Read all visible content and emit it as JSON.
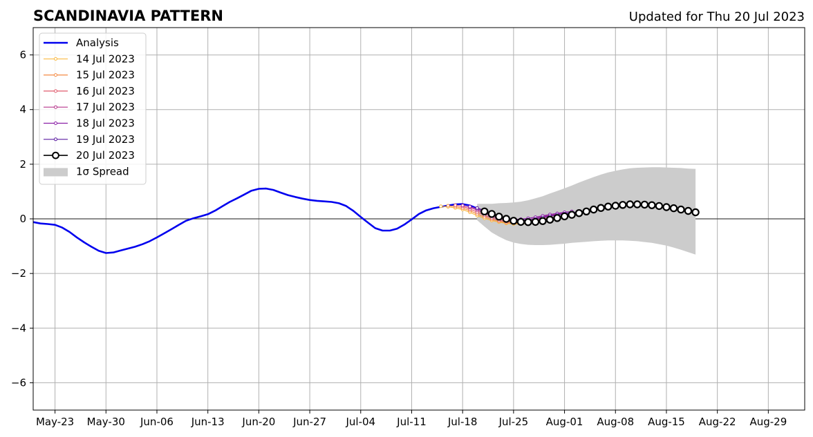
{
  "chart_data": {
    "type": "line",
    "title": "SCANDINAVIA PATTERN",
    "subtitle": "Updated for Thu 20 Jul 2023",
    "xlim": [
      "2023-05-20",
      "2023-09-03"
    ],
    "ylim": [
      -7,
      7
    ],
    "x_ticks": [
      "May-23",
      "May-30",
      "Jun-06",
      "Jun-13",
      "Jun-20",
      "Jun-27",
      "Jul-04",
      "Jul-11",
      "Jul-18",
      "Jul-25",
      "Aug-01",
      "Aug-08",
      "Aug-15",
      "Aug-22",
      "Aug-29"
    ],
    "x_tick_dates": [
      "2023-05-23",
      "2023-05-30",
      "2023-06-06",
      "2023-06-13",
      "2023-06-20",
      "2023-06-27",
      "2023-07-04",
      "2023-07-11",
      "2023-07-18",
      "2023-07-25",
      "2023-08-01",
      "2023-08-08",
      "2023-08-15",
      "2023-08-22",
      "2023-08-29"
    ],
    "y_ticks": [
      "6",
      "4",
      "2",
      "0",
      "−2",
      "−4",
      "−6"
    ],
    "y_tick_values": [
      6,
      4,
      2,
      0,
      -2,
      -4,
      -6
    ],
    "grid": true,
    "legend_position": "top-left",
    "analysis": {
      "name": "Analysis",
      "color": "#0000ee",
      "points": [
        [
          "2023-05-20",
          -0.12
        ],
        [
          "2023-05-21",
          -0.17
        ],
        [
          "2023-05-22",
          -0.19
        ],
        [
          "2023-05-23",
          -0.22
        ],
        [
          "2023-05-24",
          -0.32
        ],
        [
          "2023-05-25",
          -0.48
        ],
        [
          "2023-05-26",
          -0.68
        ],
        [
          "2023-05-27",
          -0.86
        ],
        [
          "2023-05-28",
          -1.02
        ],
        [
          "2023-05-29",
          -1.17
        ],
        [
          "2023-05-30",
          -1.25
        ],
        [
          "2023-05-31",
          -1.23
        ],
        [
          "2023-06-01",
          -1.16
        ],
        [
          "2023-06-02",
          -1.09
        ],
        [
          "2023-06-03",
          -1.02
        ],
        [
          "2023-06-04",
          -0.93
        ],
        [
          "2023-06-05",
          -0.82
        ],
        [
          "2023-06-06",
          -0.68
        ],
        [
          "2023-06-07",
          -0.53
        ],
        [
          "2023-06-08",
          -0.38
        ],
        [
          "2023-06-09",
          -0.22
        ],
        [
          "2023-06-10",
          -0.07
        ],
        [
          "2023-06-11",
          0.02
        ],
        [
          "2023-06-12",
          0.09
        ],
        [
          "2023-06-13",
          0.17
        ],
        [
          "2023-06-14",
          0.3
        ],
        [
          "2023-06-15",
          0.46
        ],
        [
          "2023-06-16",
          0.62
        ],
        [
          "2023-06-17",
          0.75
        ],
        [
          "2023-06-18",
          0.89
        ],
        [
          "2023-06-19",
          1.03
        ],
        [
          "2023-06-20",
          1.1
        ],
        [
          "2023-06-21",
          1.11
        ],
        [
          "2023-06-22",
          1.06
        ],
        [
          "2023-06-23",
          0.96
        ],
        [
          "2023-06-24",
          0.87
        ],
        [
          "2023-06-25",
          0.8
        ],
        [
          "2023-06-26",
          0.74
        ],
        [
          "2023-06-27",
          0.69
        ],
        [
          "2023-06-28",
          0.66
        ],
        [
          "2023-06-29",
          0.64
        ],
        [
          "2023-06-30",
          0.62
        ],
        [
          "2023-07-01",
          0.57
        ],
        [
          "2023-07-02",
          0.47
        ],
        [
          "2023-07-03",
          0.29
        ],
        [
          "2023-07-04",
          0.07
        ],
        [
          "2023-07-05",
          -0.14
        ],
        [
          "2023-07-06",
          -0.34
        ],
        [
          "2023-07-07",
          -0.43
        ],
        [
          "2023-07-08",
          -0.43
        ],
        [
          "2023-07-09",
          -0.36
        ],
        [
          "2023-07-10",
          -0.21
        ],
        [
          "2023-07-11",
          -0.02
        ],
        [
          "2023-07-12",
          0.18
        ],
        [
          "2023-07-13",
          0.31
        ],
        [
          "2023-07-14",
          0.39
        ],
        [
          "2023-07-15",
          0.44
        ],
        [
          "2023-07-16",
          0.49
        ],
        [
          "2023-07-17",
          0.53
        ],
        [
          "2023-07-18",
          0.54
        ],
        [
          "2023-07-19",
          0.49
        ],
        [
          "2023-07-20",
          0.38
        ]
      ]
    },
    "spread": {
      "name": "1σ Spread",
      "color": "#cccccc",
      "points": [
        [
          "2023-07-20",
          0.55,
          -0.05
        ],
        [
          "2023-07-21",
          0.55,
          -0.28
        ],
        [
          "2023-07-22",
          0.55,
          -0.5
        ],
        [
          "2023-07-23",
          0.57,
          -0.65
        ],
        [
          "2023-07-24",
          0.58,
          -0.78
        ],
        [
          "2023-07-25",
          0.6,
          -0.87
        ],
        [
          "2023-07-26",
          0.63,
          -0.92
        ],
        [
          "2023-07-27",
          0.68,
          -0.95
        ],
        [
          "2023-07-28",
          0.75,
          -0.96
        ],
        [
          "2023-07-29",
          0.83,
          -0.96
        ],
        [
          "2023-07-30",
          0.93,
          -0.95
        ],
        [
          "2023-07-31",
          1.02,
          -0.93
        ],
        [
          "2023-08-01",
          1.12,
          -0.91
        ],
        [
          "2023-08-02",
          1.22,
          -0.88
        ],
        [
          "2023-08-03",
          1.33,
          -0.86
        ],
        [
          "2023-08-04",
          1.43,
          -0.84
        ],
        [
          "2023-08-05",
          1.53,
          -0.82
        ],
        [
          "2023-08-06",
          1.62,
          -0.8
        ],
        [
          "2023-08-07",
          1.7,
          -0.79
        ],
        [
          "2023-08-08",
          1.76,
          -0.79
        ],
        [
          "2023-08-09",
          1.81,
          -0.79
        ],
        [
          "2023-08-10",
          1.85,
          -0.8
        ],
        [
          "2023-08-11",
          1.87,
          -0.82
        ],
        [
          "2023-08-12",
          1.88,
          -0.85
        ],
        [
          "2023-08-13",
          1.89,
          -0.88
        ],
        [
          "2023-08-14",
          1.89,
          -0.93
        ],
        [
          "2023-08-15",
          1.88,
          -0.98
        ],
        [
          "2023-08-16",
          1.87,
          -1.05
        ],
        [
          "2023-08-17",
          1.86,
          -1.13
        ],
        [
          "2023-08-18",
          1.84,
          -1.22
        ],
        [
          "2023-08-19",
          1.83,
          -1.31
        ]
      ]
    },
    "series": [
      {
        "name": "14 Jul 2023",
        "color": "#f9b83e",
        "x": [
          "2023-07-15",
          "2023-07-16",
          "2023-07-17",
          "2023-07-18",
          "2023-07-19",
          "2023-07-20",
          "2023-07-21",
          "2023-07-22",
          "2023-07-23",
          "2023-07-24",
          "2023-07-25",
          "2023-07-26",
          "2023-07-27",
          "2023-07-28",
          "2023-07-29"
        ],
        "values": [
          0.46,
          0.44,
          0.4,
          0.34,
          0.24,
          0.12,
          0.02,
          -0.06,
          -0.12,
          -0.17,
          -0.19,
          -0.19,
          -0.16,
          -0.11,
          -0.05
        ]
      },
      {
        "name": "15 Jul 2023",
        "color": "#f58b44",
        "x": [
          "2023-07-16",
          "2023-07-17",
          "2023-07-18",
          "2023-07-19",
          "2023-07-20",
          "2023-07-21",
          "2023-07-22",
          "2023-07-23",
          "2023-07-24",
          "2023-07-25",
          "2023-07-26",
          "2023-07-27",
          "2023-07-28",
          "2023-07-29",
          "2023-07-30"
        ],
        "values": [
          0.48,
          0.45,
          0.39,
          0.3,
          0.18,
          0.07,
          -0.02,
          -0.09,
          -0.14,
          -0.16,
          -0.16,
          -0.13,
          -0.08,
          -0.02,
          0.04
        ]
      },
      {
        "name": "16 Jul 2023",
        "color": "#df5a6b",
        "x": [
          "2023-07-17",
          "2023-07-18",
          "2023-07-19",
          "2023-07-20",
          "2023-07-21",
          "2023-07-22",
          "2023-07-23",
          "2023-07-24",
          "2023-07-25",
          "2023-07-26",
          "2023-07-27",
          "2023-07-28",
          "2023-07-29",
          "2023-07-30",
          "2023-07-31"
        ],
        "values": [
          0.5,
          0.45,
          0.36,
          0.25,
          0.13,
          0.03,
          -0.05,
          -0.1,
          -0.12,
          -0.11,
          -0.08,
          -0.03,
          0.03,
          0.09,
          0.14
        ]
      },
      {
        "name": "17 Jul 2023",
        "color": "#b5348a",
        "x": [
          "2023-07-18",
          "2023-07-19",
          "2023-07-20",
          "2023-07-21",
          "2023-07-22",
          "2023-07-23",
          "2023-07-24",
          "2023-07-25",
          "2023-07-26",
          "2023-07-27",
          "2023-07-28",
          "2023-07-29",
          "2023-07-30",
          "2023-07-31",
          "2023-08-01"
        ],
        "values": [
          0.49,
          0.42,
          0.32,
          0.2,
          0.09,
          0.0,
          -0.05,
          -0.07,
          -0.06,
          -0.03,
          0.02,
          0.08,
          0.13,
          0.18,
          0.22
        ]
      },
      {
        "name": "18 Jul 2023",
        "color": "#8a1fa6",
        "x": [
          "2023-07-19",
          "2023-07-20",
          "2023-07-21",
          "2023-07-22",
          "2023-07-23",
          "2023-07-24",
          "2023-07-25",
          "2023-07-26",
          "2023-07-27",
          "2023-07-28",
          "2023-07-29",
          "2023-07-30",
          "2023-07-31",
          "2023-08-01",
          "2023-08-02"
        ],
        "values": [
          0.45,
          0.37,
          0.26,
          0.15,
          0.06,
          0.0,
          -0.02,
          -0.01,
          0.02,
          0.06,
          0.11,
          0.16,
          0.2,
          0.24,
          0.27
        ]
      },
      {
        "name": "19 Jul 2023",
        "color": "#5a1aa0",
        "x": [
          "2023-07-20",
          "2023-07-21",
          "2023-07-22",
          "2023-07-23",
          "2023-07-24",
          "2023-07-25",
          "2023-07-26",
          "2023-07-27",
          "2023-07-28",
          "2023-07-29",
          "2023-07-30",
          "2023-07-31",
          "2023-08-01",
          "2023-08-02",
          "2023-08-03"
        ],
        "values": [
          0.4,
          0.3,
          0.19,
          0.1,
          0.03,
          -0.02,
          -0.04,
          -0.03,
          0.0,
          0.05,
          0.1,
          0.15,
          0.19,
          0.23,
          0.26
        ]
      },
      {
        "name": "20 Jul 2023",
        "color": "#000000",
        "x": [
          "2023-07-21",
          "2023-07-22",
          "2023-07-23",
          "2023-07-24",
          "2023-07-25",
          "2023-07-26",
          "2023-07-27",
          "2023-07-28",
          "2023-07-29",
          "2023-07-30",
          "2023-07-31",
          "2023-08-01",
          "2023-08-02",
          "2023-08-03",
          "2023-08-04",
          "2023-08-05",
          "2023-08-06",
          "2023-08-07",
          "2023-08-08",
          "2023-08-09",
          "2023-08-10",
          "2023-08-11",
          "2023-08-12",
          "2023-08-13",
          "2023-08-14",
          "2023-08-15",
          "2023-08-16",
          "2023-08-17",
          "2023-08-18",
          "2023-08-19"
        ],
        "values": [
          0.27,
          0.18,
          0.08,
          0.0,
          -0.07,
          -0.11,
          -0.12,
          -0.11,
          -0.08,
          -0.03,
          0.03,
          0.09,
          0.15,
          0.21,
          0.27,
          0.34,
          0.4,
          0.45,
          0.48,
          0.51,
          0.53,
          0.53,
          0.52,
          0.5,
          0.47,
          0.43,
          0.39,
          0.34,
          0.29,
          0.24
        ]
      }
    ]
  }
}
